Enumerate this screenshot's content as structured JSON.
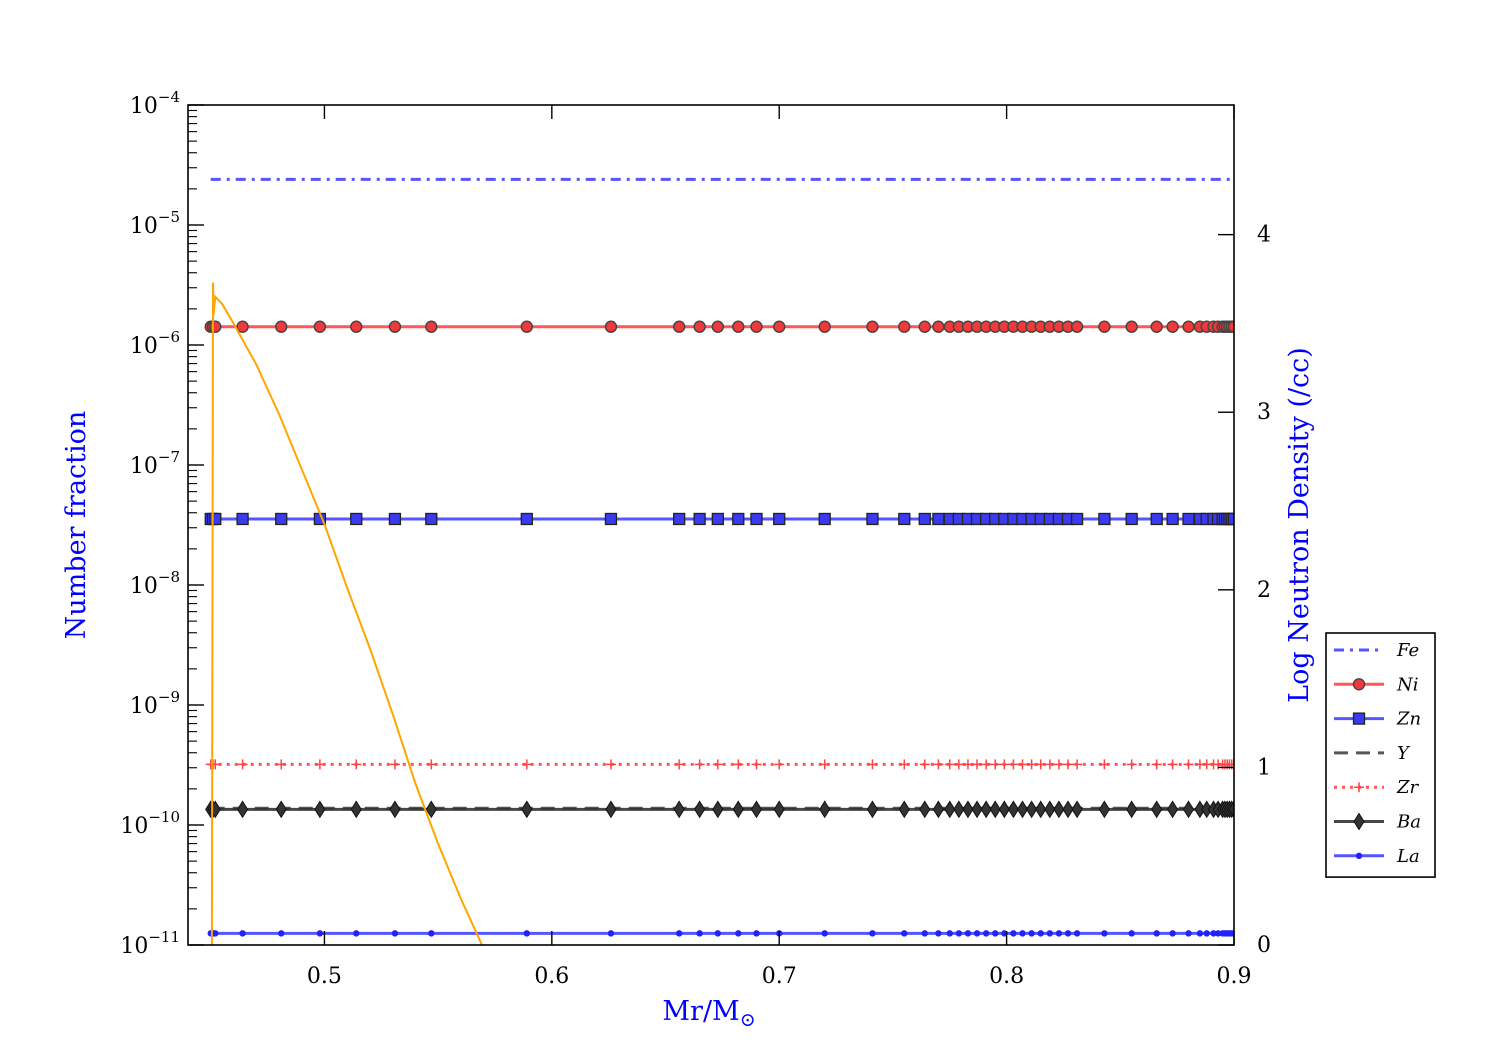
{
  "chart_data": {
    "type": "line",
    "xlabel": "Mr/M",
    "xlabel_symbol": "⊙",
    "ylabel_left": "Number fraction",
    "ylabel_right": "Log Neutron Density (/cc)",
    "xlim": [
      0.44,
      0.9
    ],
    "ylim_left": [
      1e-11,
      0.0001
    ],
    "yscale_left": "log",
    "ylim_right": [
      0,
      4.73
    ],
    "x_ticks": [
      "0.5",
      "0.6",
      "0.7",
      "0.8",
      "0.9"
    ],
    "x_tick_values": [
      0.5,
      0.6,
      0.7,
      0.8,
      0.9
    ],
    "y_left_ticks": [
      {
        "value": 1e-11,
        "base": "10",
        "exp": "−11"
      },
      {
        "value": 1e-10,
        "base": "10",
        "exp": "−10"
      },
      {
        "value": 1e-09,
        "base": "10",
        "exp": "−9"
      },
      {
        "value": 1e-08,
        "base": "10",
        "exp": "−8"
      },
      {
        "value": 1e-07,
        "base": "10",
        "exp": "−7"
      },
      {
        "value": 1e-06,
        "base": "10",
        "exp": "−6"
      },
      {
        "value": 1e-05,
        "base": "10",
        "exp": "−5"
      },
      {
        "value": 0.0001,
        "base": "10",
        "exp": "−4"
      }
    ],
    "y_right_ticks": [
      "0",
      "1",
      "2",
      "3",
      "4"
    ],
    "y_right_tick_values": [
      0,
      1,
      2,
      3,
      4
    ],
    "marker_x": [
      0.45,
      0.451,
      0.452,
      0.464,
      0.481,
      0.498,
      0.514,
      0.531,
      0.547,
      0.589,
      0.626,
      0.656,
      0.665,
      0.673,
      0.682,
      0.69,
      0.7,
      0.72,
      0.741,
      0.755,
      0.764,
      0.77,
      0.775,
      0.779,
      0.783,
      0.787,
      0.791,
      0.795,
      0.799,
      0.803,
      0.807,
      0.811,
      0.815,
      0.819,
      0.823,
      0.827,
      0.831,
      0.843,
      0.855,
      0.866,
      0.873,
      0.88,
      0.885,
      0.888,
      0.891,
      0.893,
      0.895,
      0.896,
      0.897,
      0.898,
      0.899,
      0.9
    ],
    "series": [
      {
        "name": "Fe",
        "value": 2.4e-05,
        "color": "#4444ff",
        "dash": "10,6,3,6",
        "marker": "none"
      },
      {
        "name": "Ni",
        "value": 1.42e-06,
        "color": "#ff4444",
        "dash": "",
        "marker": "circle",
        "marker_fill": "#ee3a3a"
      },
      {
        "name": "Zn",
        "value": 3.55e-08,
        "color": "#4444ff",
        "dash": "",
        "marker": "square",
        "marker_fill": "#3a3aee"
      },
      {
        "name": "Y",
        "value": 1.38e-10,
        "color": "#444444",
        "dash": "14,8",
        "marker": "none"
      },
      {
        "name": "Zr",
        "value": 3.2e-10,
        "color": "#ff4444",
        "dash": "3,5",
        "marker": "plus"
      },
      {
        "name": "Ba",
        "value": 1.35e-10,
        "color": "#333333",
        "dash": "",
        "marker": "diamond",
        "marker_fill": "#333333"
      },
      {
        "name": "La",
        "value": 1.25e-11,
        "color": "#4444ff",
        "dash": "",
        "marker": "dot",
        "marker_fill": "#2222ff"
      }
    ],
    "neutron_density": {
      "axis": "right",
      "color": "#ffa500",
      "x": [
        0.4505,
        0.451,
        0.4512,
        0.452,
        0.455,
        0.46,
        0.47,
        0.48,
        0.49,
        0.5,
        0.51,
        0.52,
        0.53,
        0.54,
        0.55,
        0.56,
        0.57
      ],
      "y": [
        0.0,
        3.73,
        3.55,
        3.65,
        3.61,
        3.5,
        3.27,
        2.99,
        2.68,
        2.37,
        2.01,
        1.67,
        1.3,
        0.91,
        0.57,
        0.26,
        -0.02
      ]
    },
    "legend": {
      "position": "right",
      "entries": [
        "Fe",
        "Ni",
        "Zn",
        "Y",
        "Zr",
        "Ba",
        "La"
      ]
    }
  }
}
